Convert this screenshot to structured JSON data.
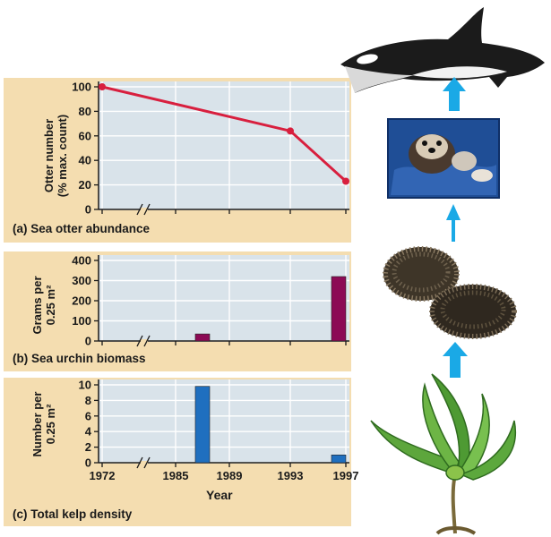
{
  "chart_data": [
    {
      "type": "line",
      "caption": "(a) Sea otter abundance",
      "ylabel_lines": [
        "Otter number",
        "(% max. count)"
      ],
      "ylim": [
        0,
        100
      ],
      "yticks": [
        "0",
        "20",
        "40",
        "60",
        "80",
        "100"
      ],
      "xticks": [
        "1972",
        "1985",
        "1989",
        "1993",
        "1997"
      ],
      "axis_break": true,
      "grid": true,
      "color": "#d81f3e",
      "x": [
        "1972",
        "1993",
        "1997"
      ],
      "values": [
        100,
        64,
        23
      ]
    },
    {
      "type": "bar",
      "caption": "(b) Sea urchin biomass",
      "ylabel_lines": [
        "Grams per",
        "0.25 m²"
      ],
      "ylim": [
        0,
        400
      ],
      "yticks": [
        "0",
        "100",
        "200",
        "300",
        "400"
      ],
      "xticks": [
        "1972",
        "1985",
        "1989",
        "1993",
        "1997"
      ],
      "axis_break": true,
      "grid": true,
      "color": "#8c0a55",
      "x": [
        "1987",
        "1997"
      ],
      "values": [
        35,
        320
      ]
    },
    {
      "type": "bar",
      "caption": "(c) Total kelp density",
      "ylabel_lines": [
        "Number per",
        "0.25 m²"
      ],
      "ylim": [
        0,
        10
      ],
      "yticks": [
        "0",
        "2",
        "4",
        "6",
        "8",
        "10"
      ],
      "xticks": [
        "1972",
        "1985",
        "1989",
        "1993",
        "1997"
      ],
      "xlabel": "Year",
      "axis_break": true,
      "grid": true,
      "color": "#1f6fbf",
      "x": [
        "1987",
        "1997"
      ],
      "values": [
        9.8,
        1
      ]
    }
  ],
  "colors": {
    "panel_bg": "#f4ddb0",
    "plot_bg": "#d9e3ea",
    "arrow": "#1aa9e6"
  },
  "illustrations": [
    "orca-icon",
    "sea-otter-photo",
    "sea-urchin-icon",
    "kelp-icon"
  ]
}
